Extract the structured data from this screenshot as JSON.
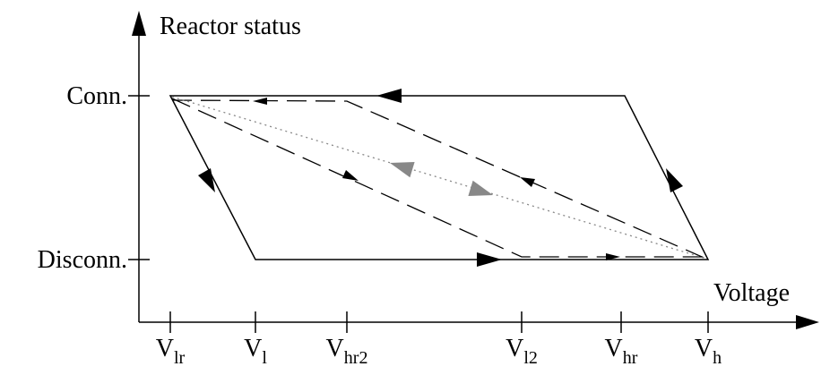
{
  "y_axis": {
    "label": "Reactor status",
    "levels": [
      "Conn.",
      "Disconn."
    ]
  },
  "x_axis": {
    "label": "Voltage",
    "ticks": [
      {
        "main": "V",
        "sub": "lr"
      },
      {
        "main": "V",
        "sub": "l"
      },
      {
        "main": "V",
        "sub": "hr2"
      },
      {
        "main": "V",
        "sub": "l2"
      },
      {
        "main": "V",
        "sub": "hr"
      },
      {
        "main": "V",
        "sub": "h"
      }
    ]
  }
}
